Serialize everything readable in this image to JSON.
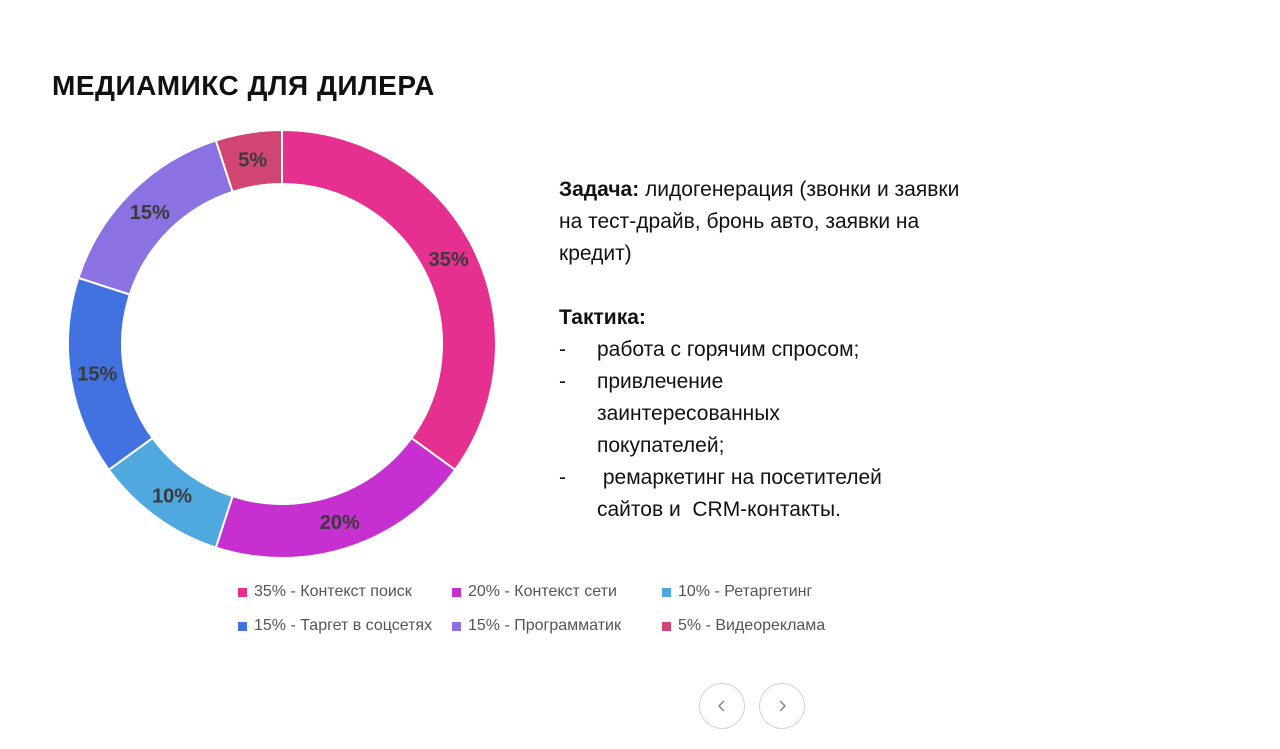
{
  "title": "МЕДИАМИКС ДЛЯ ДИЛЕРА",
  "chart_data": {
    "type": "pie",
    "style": "donut",
    "title": "",
    "categories": [
      "Контекст поиск",
      "Контекст сети",
      "Ретаргетинг",
      "Таргет в соцсетях",
      "Программатик",
      "Видеореклама"
    ],
    "values": [
      35,
      20,
      10,
      15,
      15,
      5
    ],
    "data_labels": [
      "35%",
      "20%",
      "10%",
      "15%",
      "15%",
      "5%"
    ],
    "colors": [
      "#E5308F",
      "#C62FD0",
      "#4FA8DE",
      "#4272E0",
      "#8C71E2",
      "#D14573"
    ],
    "legend": [
      {
        "text": "35% - Контекст поиск",
        "color": "#E5308F"
      },
      {
        "text": "20% - Контекст сети",
        "color": "#C62FD0"
      },
      {
        "text": "10% - Ретаргетинг",
        "color": "#4FA8DE"
      },
      {
        "text": "15% - Таргет в соцсетях",
        "color": "#4272E0"
      },
      {
        "text": "15% - Программатик",
        "color": "#8C71E2"
      },
      {
        "text": "5% - Видеореклама",
        "color": "#D14573"
      }
    ],
    "legend_position": "bottom"
  },
  "text_block": {
    "task_label": "Задача:",
    "task_text": " лидогенерация (звонки и заявки на тест-драйв, бронь авто, заявки на кредит)",
    "tactic_label": "Тактика:",
    "tactics": [
      {
        "dash": "-",
        "text": "работа с горячим спросом;"
      },
      {
        "dash": "-",
        "text": "привлечение заинтересованных покупателей;"
      },
      {
        "dash": "-",
        "text": " ремаркетинг на посетителей сайтов и  CRM-контакты."
      }
    ]
  },
  "nav": {
    "prev_icon": "chevron-left-icon",
    "next_icon": "chevron-right-icon"
  }
}
